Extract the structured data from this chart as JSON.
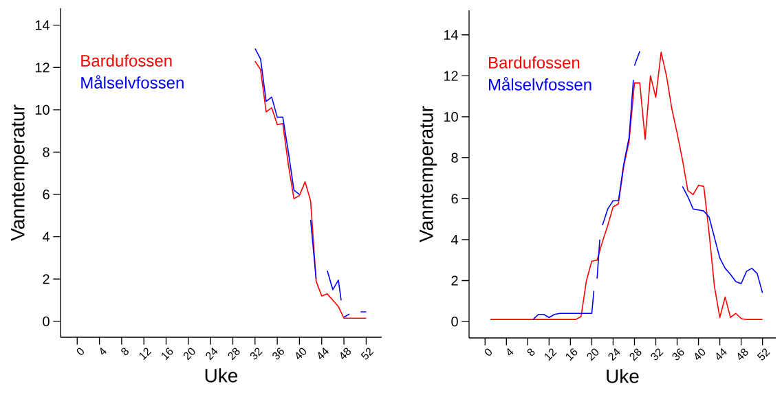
{
  "chart_data": [
    {
      "type": "line",
      "xlabel": "Uke",
      "ylabel": "Vanntemperatur",
      "xlim": [
        -3,
        54.8
      ],
      "ylim": [
        -0.75,
        14.8
      ],
      "xticks": [
        0,
        4,
        8,
        12,
        16,
        20,
        24,
        28,
        32,
        36,
        40,
        44,
        48,
        52
      ],
      "yticks": [
        0,
        2,
        4,
        6,
        8,
        10,
        12,
        14
      ],
      "legend": "top left",
      "series": [
        {
          "name": "Bardufossen",
          "color": "#ff0000",
          "x": [
            32,
            33,
            34,
            35,
            36,
            37,
            38,
            39,
            40,
            41,
            42,
            43,
            44,
            45,
            46,
            47,
            48,
            49,
            50,
            51,
            52
          ],
          "values": [
            12.3,
            11.9,
            9.9,
            10.1,
            9.3,
            9.35,
            7.4,
            5.8,
            5.95,
            6.6,
            5.7,
            1.9,
            1.2,
            1.3,
            1.0,
            0.7,
            0.15,
            0.15,
            0.15,
            0.15,
            0.15
          ]
        },
        {
          "name": "Målselvfossen",
          "color": "#0000ff",
          "x": [
            32,
            33,
            34,
            35,
            36,
            37,
            38,
            39,
            40,
            41,
            42,
            43,
            44,
            45,
            46,
            47,
            47.5,
            47.7,
            48,
            49,
            50,
            51,
            52
          ],
          "values": [
            12.9,
            12.4,
            10.4,
            10.6,
            9.65,
            9.65,
            8.0,
            6.2,
            6.0,
            null,
            4.8,
            2.0,
            null,
            2.4,
            1.5,
            1.95,
            1.0,
            null,
            0.2,
            0.35,
            null,
            0.45,
            0.45
          ]
        }
      ]
    },
    {
      "type": "line",
      "xlabel": "Uke",
      "ylabel": "Vanntemperatur",
      "xlim": [
        -3,
        54.5
      ],
      "ylim": [
        -0.8,
        15.2
      ],
      "xticks": [
        0,
        4,
        8,
        12,
        16,
        20,
        24,
        28,
        32,
        36,
        40,
        44,
        48,
        52
      ],
      "yticks": [
        0,
        2,
        4,
        6,
        8,
        10,
        12,
        14
      ],
      "legend": "top left",
      "series": [
        {
          "name": "Bardufossen",
          "color": "#ff0000",
          "x": [
            1,
            2,
            3,
            4,
            5,
            6,
            7,
            8,
            9,
            10,
            11,
            12,
            13,
            14,
            15,
            16,
            17,
            18,
            19,
            20,
            21,
            22,
            23,
            24,
            25,
            26,
            27,
            28,
            29,
            30,
            31,
            32,
            33,
            34,
            35,
            36,
            37,
            38,
            39,
            40,
            41,
            42,
            43,
            44,
            45,
            46,
            47,
            48,
            49,
            50,
            51,
            52
          ],
          "values": [
            0.1,
            0.1,
            0.1,
            0.1,
            0.1,
            0.1,
            0.1,
            0.1,
            0.1,
            0.1,
            0.1,
            0.1,
            0.1,
            0.1,
            0.1,
            0.1,
            0.1,
            0.25,
            2.0,
            2.95,
            3.0,
            3.9,
            4.7,
            5.6,
            5.75,
            7.6,
            8.8,
            11.65,
            11.65,
            8.9,
            12.0,
            10.95,
            13.15,
            12.0,
            10.4,
            9.2,
            7.9,
            6.4,
            6.2,
            6.65,
            6.6,
            4.3,
            1.7,
            0.2,
            1.2,
            0.2,
            0.4,
            0.15,
            0.1,
            0.1,
            0.1,
            0.1
          ]
        },
        {
          "name": "Målselvfossen",
          "color": "#0000ff",
          "x": [
            9,
            10,
            11,
            12,
            13,
            14,
            15,
            16,
            17,
            18,
            19,
            20,
            20.4,
            20.7,
            21,
            21.5,
            21.8,
            22,
            23,
            24,
            25,
            26,
            27,
            27.8,
            27.9,
            28,
            29,
            33,
            37,
            38,
            39,
            40,
            41,
            42,
            43,
            44,
            45,
            46,
            47,
            48,
            49,
            50,
            51,
            52
          ],
          "values": [
            0.1,
            0.35,
            0.35,
            0.2,
            0.35,
            0.4,
            0.4,
            0.4,
            0.4,
            0.4,
            0.4,
            0.4,
            1.5,
            null,
            2.1,
            4.0,
            null,
            4.7,
            5.5,
            5.9,
            5.9,
            7.7,
            9.0,
            11.8,
            null,
            12.5,
            13.2,
            null,
            6.6,
            6.1,
            5.5,
            5.45,
            5.4,
            5.1,
            4.1,
            3.1,
            2.6,
            2.3,
            1.95,
            1.85,
            2.45,
            2.6,
            2.35,
            1.4
          ]
        }
      ]
    }
  ]
}
